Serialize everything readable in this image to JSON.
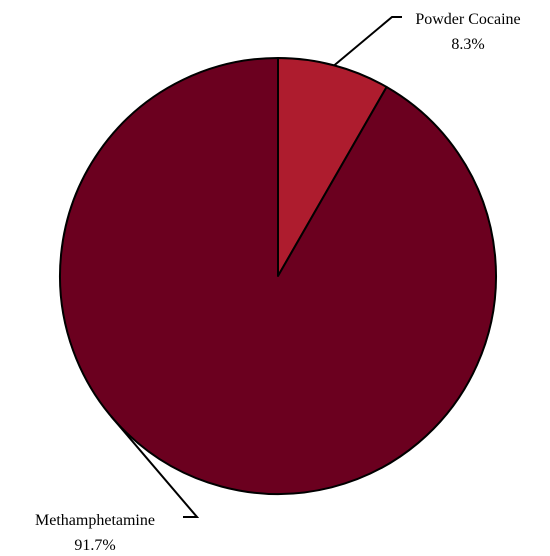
{
  "chart_data": {
    "type": "pie",
    "start_angle_deg": 0,
    "direction": "clockwise",
    "slices": [
      {
        "label": "Powder Cocaine",
        "value": 8.3,
        "value_label": "8.3%",
        "color": "#ae1c2e"
      },
      {
        "label": "Methamphetamine",
        "value": 91.7,
        "value_label": "91.7%",
        "color": "#6b001f"
      }
    ],
    "edge_color": "#000000"
  }
}
